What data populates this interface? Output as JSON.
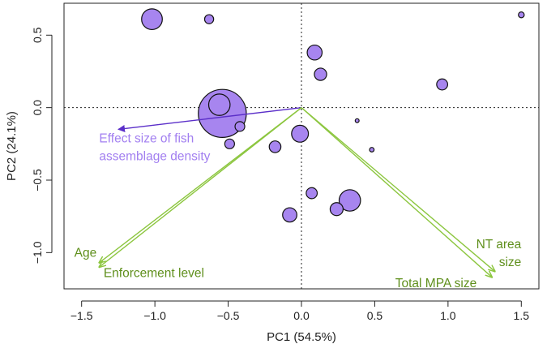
{
  "chart_data": {
    "type": "scatter",
    "title": "",
    "xlabel": "PC1 (54.5%)",
    "ylabel": "PC2 (24.1%)",
    "xlim": [
      -1.62,
      1.62
    ],
    "ylim": [
      -1.25,
      0.72
    ],
    "xticks": [
      -1.5,
      -1.0,
      -0.5,
      0.0,
      0.5,
      1.0,
      1.5
    ],
    "xtick_labels": [
      "−1.5",
      "−1.0",
      "−0.5",
      "0.0",
      "0.5",
      "1.0",
      "1.5"
    ],
    "yticks": [
      -1.0,
      -0.5,
      0.0,
      0.5
    ],
    "ytick_labels": [
      "−1.0",
      "−0.5",
      "0.0",
      "0.5"
    ],
    "grid": false,
    "reference_lines": {
      "x": 0,
      "y": 0,
      "style": "dotted"
    },
    "colors": {
      "points_fill": "#a785ef",
      "points_stroke": "#111111",
      "response_arrow": "#5b2fc9",
      "response_label": "#a27ff0",
      "driver_arrows": "#8cc63f",
      "driver_labels": "#5f8f1c"
    },
    "points": [
      {
        "x": -1.02,
        "y": 0.61,
        "size": 3.2
      },
      {
        "x": -0.63,
        "y": 0.61,
        "size": 1.4
      },
      {
        "x": 1.5,
        "y": 0.64,
        "size": 0.9
      },
      {
        "x": 0.09,
        "y": 0.38,
        "size": 2.3
      },
      {
        "x": 0.13,
        "y": 0.23,
        "size": 1.9
      },
      {
        "x": 0.96,
        "y": 0.16,
        "size": 1.7
      },
      {
        "x": -0.56,
        "y": 0.02,
        "size": 3.3
      },
      {
        "x": -0.54,
        "y": -0.04,
        "size": 7.4
      },
      {
        "x": -0.42,
        "y": -0.13,
        "size": 1.5
      },
      {
        "x": -0.49,
        "y": -0.25,
        "size": 1.5
      },
      {
        "x": 0.38,
        "y": -0.09,
        "size": 0.6
      },
      {
        "x": -0.18,
        "y": -0.27,
        "size": 1.8
      },
      {
        "x": -0.01,
        "y": -0.18,
        "size": 2.6
      },
      {
        "x": 0.48,
        "y": -0.29,
        "size": 0.7
      },
      {
        "x": 0.07,
        "y": -0.59,
        "size": 1.7
      },
      {
        "x": 0.33,
        "y": -0.64,
        "size": 3.3
      },
      {
        "x": 0.24,
        "y": -0.7,
        "size": 2.0
      },
      {
        "x": -0.08,
        "y": -0.74,
        "size": 2.2
      }
    ],
    "arrows": [
      {
        "name": "Effect size of fish assemblage density",
        "x": -1.25,
        "y": -0.15,
        "group": "response"
      },
      {
        "name": "Age",
        "x": -1.38,
        "y": -1.07,
        "group": "driver"
      },
      {
        "name": "Enforcement level",
        "x": -1.38,
        "y": -1.1,
        "group": "driver"
      },
      {
        "name": "NT area size",
        "x": 1.32,
        "y": -1.13,
        "group": "driver"
      },
      {
        "name": "Total MPA size",
        "x": 1.3,
        "y": -1.17,
        "group": "driver"
      }
    ],
    "annotations": [
      {
        "lines": [
          "Effect size of fish",
          "assemblage density"
        ],
        "x": -1.38,
        "y": -0.24,
        "anchor": "start",
        "group": "response"
      },
      {
        "lines": [
          "Age"
        ],
        "x": -1.55,
        "y": -1.03,
        "anchor": "start",
        "group": "driver"
      },
      {
        "lines": [
          "Enforcement level"
        ],
        "x": -1.35,
        "y": -1.17,
        "anchor": "start",
        "group": "driver"
      },
      {
        "lines": [
          "NT area",
          "size"
        ],
        "x": 1.5,
        "y": -0.97,
        "anchor": "end",
        "group": "driver"
      },
      {
        "lines": [
          "Total MPA size"
        ],
        "x": 0.64,
        "y": -1.24,
        "anchor": "start",
        "group": "driver"
      }
    ]
  }
}
